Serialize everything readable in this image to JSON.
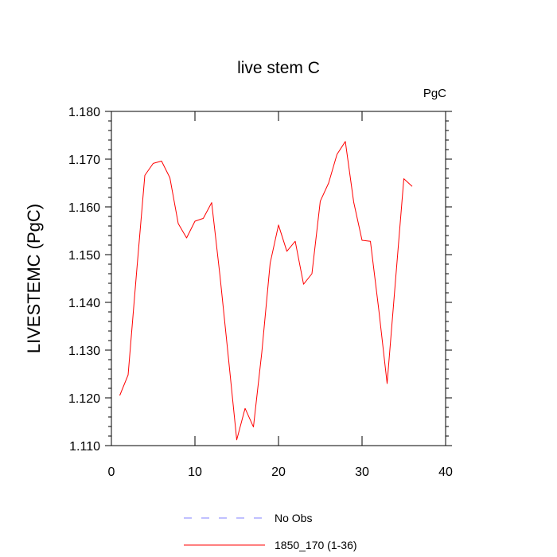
{
  "chart_data": {
    "type": "line",
    "title": "live stem C",
    "units_label": "PgC",
    "ylabel": "LIVESTEMC  (PgC)",
    "xlabel": "",
    "xlim": [
      0,
      40
    ],
    "ylim": [
      1.11,
      1.18
    ],
    "x_ticks": [
      0,
      10,
      20,
      30,
      40
    ],
    "y_ticks": [
      "1.110",
      "1.120",
      "1.130",
      "1.140",
      "1.150",
      "1.160",
      "1.170",
      "1.180"
    ],
    "grid": false,
    "legend_position": "bottom",
    "series": [
      {
        "name": "No Obs",
        "color": "#8080ff",
        "dash": "dashed",
        "x": [],
        "y": []
      },
      {
        "name": "1850_170 (1-36)",
        "color": "#ff0000",
        "dash": "solid",
        "x": [
          1,
          2,
          3,
          4,
          5,
          6,
          7,
          8,
          9,
          10,
          11,
          12,
          13,
          14,
          15,
          16,
          17,
          18,
          19,
          20,
          21,
          22,
          23,
          24,
          25,
          26,
          27,
          28,
          29,
          30,
          31,
          32,
          33,
          34,
          35,
          36
        ],
        "y": [
          1.1205,
          1.1248,
          1.146,
          1.1666,
          1.1691,
          1.1696,
          1.1661,
          1.1565,
          1.1535,
          1.157,
          1.1576,
          1.1609,
          1.1455,
          1.1285,
          1.1112,
          1.1178,
          1.1139,
          1.1295,
          1.1482,
          1.1562,
          1.1507,
          1.1528,
          1.1438,
          1.146,
          1.1612,
          1.165,
          1.171,
          1.1737,
          1.161,
          1.153,
          1.1528,
          1.1385,
          1.123,
          1.1445,
          1.1659,
          1.1643
        ]
      }
    ]
  }
}
